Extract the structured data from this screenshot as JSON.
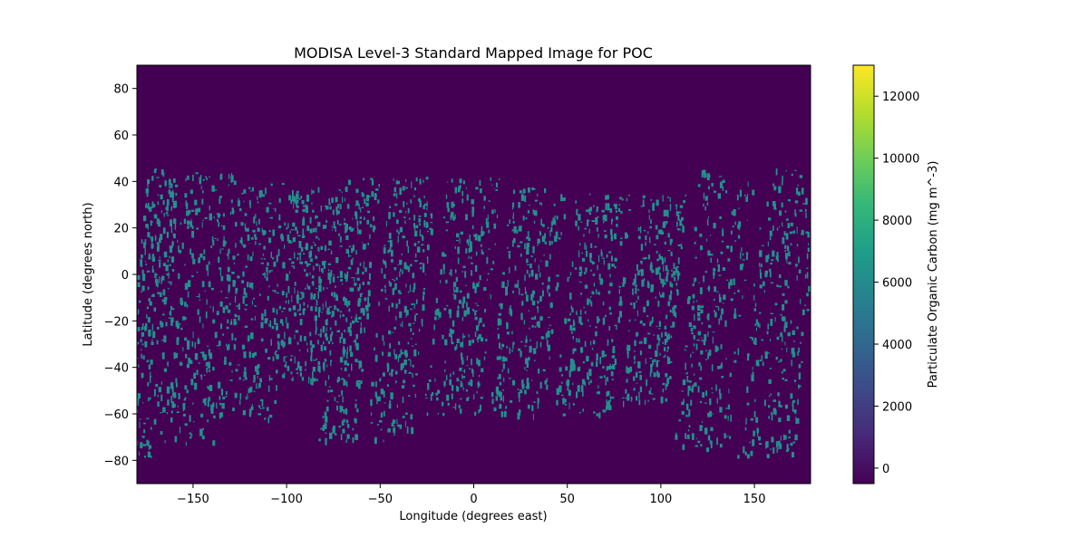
{
  "chart_data": {
    "type": "heatmap",
    "title": "MODISA Level-3 Standard Mapped Image for POC",
    "xlabel": "Longitude (degrees east)",
    "ylabel": "Latitude (degrees north)",
    "xlim": [
      -180,
      180
    ],
    "ylim": [
      -90,
      90
    ],
    "x_ticks": [
      -150,
      -100,
      -50,
      0,
      50,
      100,
      150
    ],
    "y_ticks": [
      -80,
      -60,
      -40,
      -20,
      0,
      20,
      40,
      60,
      80
    ],
    "colorbar": {
      "label": "Particulate Organic Carbon (mg m^-3)",
      "range": [
        -500,
        13000
      ],
      "ticks": [
        0,
        2000,
        4000,
        6000,
        8000,
        10000,
        12000
      ],
      "colormap": "viridis"
    },
    "background_value": 0,
    "fill_value_est": 7000,
    "swath_bands": [
      {
        "lon": [
          -180,
          -162
        ],
        "lat": [
          -78,
          46
        ]
      },
      {
        "lon": [
          -162,
          -130
        ],
        "lat": [
          -72,
          45
        ]
      },
      {
        "lon": [
          -130,
          -100
        ],
        "lat": [
          -62,
          40
        ]
      },
      {
        "lon": [
          -100,
          -75
        ],
        "lat": [
          -45,
          38
        ]
      },
      {
        "lon": [
          -75,
          -55
        ],
        "lat": [
          -72,
          42
        ]
      },
      {
        "lon": [
          -50,
          -25
        ],
        "lat": [
          -72,
          42
        ]
      },
      {
        "lon": [
          -20,
          10
        ],
        "lat": [
          -60,
          42
        ]
      },
      {
        "lon": [
          15,
          45
        ],
        "lat": [
          -60,
          38
        ]
      },
      {
        "lon": [
          50,
          80
        ],
        "lat": [
          -60,
          35
        ]
      },
      {
        "lon": [
          85,
          110
        ],
        "lat": [
          -55,
          35
        ]
      },
      {
        "lon": [
          115,
          145
        ],
        "lat": [
          -75,
          45
        ]
      },
      {
        "lon": [
          150,
          180
        ],
        "lat": [
          -78,
          46
        ]
      }
    ],
    "colors": {
      "background": "#440154",
      "fill": "#21918c",
      "colormap_stops": [
        "#440154",
        "#482878",
        "#3e4989",
        "#31688e",
        "#26828e",
        "#1f9e89",
        "#35b779",
        "#6ece58",
        "#b5de2b",
        "#fde725"
      ]
    }
  }
}
